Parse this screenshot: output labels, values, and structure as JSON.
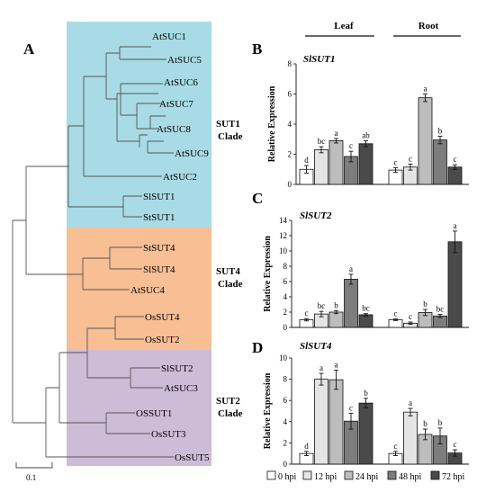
{
  "figure": {
    "panel_a": "A",
    "scale_bar_label": "0.1",
    "clades": [
      {
        "name": "SUT1",
        "suffix": "Clade",
        "color": "#a8dbe5"
      },
      {
        "name": "SUT4",
        "suffix": "Clade",
        "color": "#f8be94"
      },
      {
        "name": "SUT2",
        "suffix": "Clade",
        "color": "#cdbcd6"
      }
    ],
    "tree_leaves": [
      "AtSUC1",
      "AtSUC5",
      "AtSUC6",
      "AtSUC7",
      "AtSUC8",
      "AtSUC9",
      "AtSUC2",
      "SlSUT1",
      "StSUT1",
      "StSUT4",
      "SlSUT4",
      "AtSUC4",
      "OsSUT4",
      "OsSUT2",
      "SlSUT2",
      "AtSUC3",
      "OSSUT1",
      "OsSUT3",
      "OsSUT5"
    ],
    "group_labels": [
      "Leaf",
      "Root"
    ],
    "legend": [
      "0 hpi",
      "12 hpi",
      "24 hpi",
      "48 hpi",
      "72 hpi"
    ],
    "colors": [
      "#ffffff",
      "#e4e4e4",
      "#bdbdbd",
      "#7d7d7d",
      "#4a4a4a"
    ]
  },
  "chart_data": [
    {
      "type": "bar",
      "panel": "B",
      "title": "SlSUT1",
      "ylabel": "Relative Expression",
      "ylim": [
        0,
        8
      ],
      "yticks": [
        "0",
        "2",
        "4",
        "6",
        "8"
      ],
      "groups": [
        "Leaf",
        "Root"
      ],
      "series": [
        {
          "name": "0 hpi",
          "values": [
            1.0,
            0.95
          ],
          "errors": [
            0.25,
            0.15
          ],
          "letters": [
            "d",
            "c"
          ]
        },
        {
          "name": "12 hpi",
          "values": [
            2.3,
            1.15
          ],
          "errors": [
            0.2,
            0.2
          ],
          "letters": [
            "bc",
            "c"
          ]
        },
        {
          "name": "24 hpi",
          "values": [
            2.9,
            5.75
          ],
          "errors": [
            0.15,
            0.25
          ],
          "letters": [
            "a",
            "a"
          ]
        },
        {
          "name": "48 hpi",
          "values": [
            1.85,
            2.95
          ],
          "errors": [
            0.35,
            0.25
          ],
          "letters": [
            "c",
            "b"
          ]
        },
        {
          "name": "72 hpi",
          "values": [
            2.7,
            1.15
          ],
          "errors": [
            0.2,
            0.15
          ],
          "letters": [
            "ab",
            "c"
          ]
        }
      ]
    },
    {
      "type": "bar",
      "panel": "C",
      "title": "SlSUT2",
      "ylabel": "Relative Expression",
      "ylim": [
        0,
        14
      ],
      "yticks": [
        "0",
        "2",
        "4",
        "6",
        "8",
        "10",
        "12",
        "14"
      ],
      "groups": [
        "Leaf",
        "Root"
      ],
      "series": [
        {
          "name": "0 hpi",
          "values": [
            1.0,
            1.0
          ],
          "errors": [
            0.15,
            0.1
          ],
          "letters": [
            "c",
            "c"
          ]
        },
        {
          "name": "12 hpi",
          "values": [
            1.75,
            0.55
          ],
          "errors": [
            0.35,
            0.15
          ],
          "letters": [
            "bc",
            "c"
          ]
        },
        {
          "name": "24 hpi",
          "values": [
            2.0,
            1.95
          ],
          "errors": [
            0.2,
            0.4
          ],
          "letters": [
            "b",
            "b"
          ]
        },
        {
          "name": "48 hpi",
          "values": [
            6.3,
            1.5
          ],
          "errors": [
            0.65,
            0.2
          ],
          "letters": [
            "a",
            "bc"
          ]
        },
        {
          "name": "72 hpi",
          "values": [
            1.65,
            11.2
          ],
          "errors": [
            0.15,
            1.4
          ],
          "letters": [
            "bc",
            "a"
          ]
        }
      ]
    },
    {
      "type": "bar",
      "panel": "D",
      "title": "SlSUT4",
      "ylabel": "Relative Expression",
      "ylim": [
        0,
        10
      ],
      "yticks": [
        "0",
        "2",
        "4",
        "6",
        "8",
        "10"
      ],
      "groups": [
        "Leaf",
        "Root"
      ],
      "series": [
        {
          "name": "0 hpi",
          "values": [
            1.0,
            1.0
          ],
          "errors": [
            0.2,
            0.2
          ],
          "letters": [
            "d",
            "c"
          ]
        },
        {
          "name": "12 hpi",
          "values": [
            8.0,
            4.9
          ],
          "errors": [
            0.55,
            0.35
          ],
          "letters": [
            "a",
            "a"
          ]
        },
        {
          "name": "24 hpi",
          "values": [
            7.95,
            2.8
          ],
          "errors": [
            0.9,
            0.5
          ],
          "letters": [
            "a",
            "b"
          ]
        },
        {
          "name": "48 hpi",
          "values": [
            4.05,
            2.65
          ],
          "errors": [
            0.75,
            0.75
          ],
          "letters": [
            "c",
            "b"
          ]
        },
        {
          "name": "72 hpi",
          "values": [
            5.75,
            1.05
          ],
          "errors": [
            0.45,
            0.3
          ],
          "letters": [
            "b",
            "c"
          ]
        }
      ]
    }
  ]
}
